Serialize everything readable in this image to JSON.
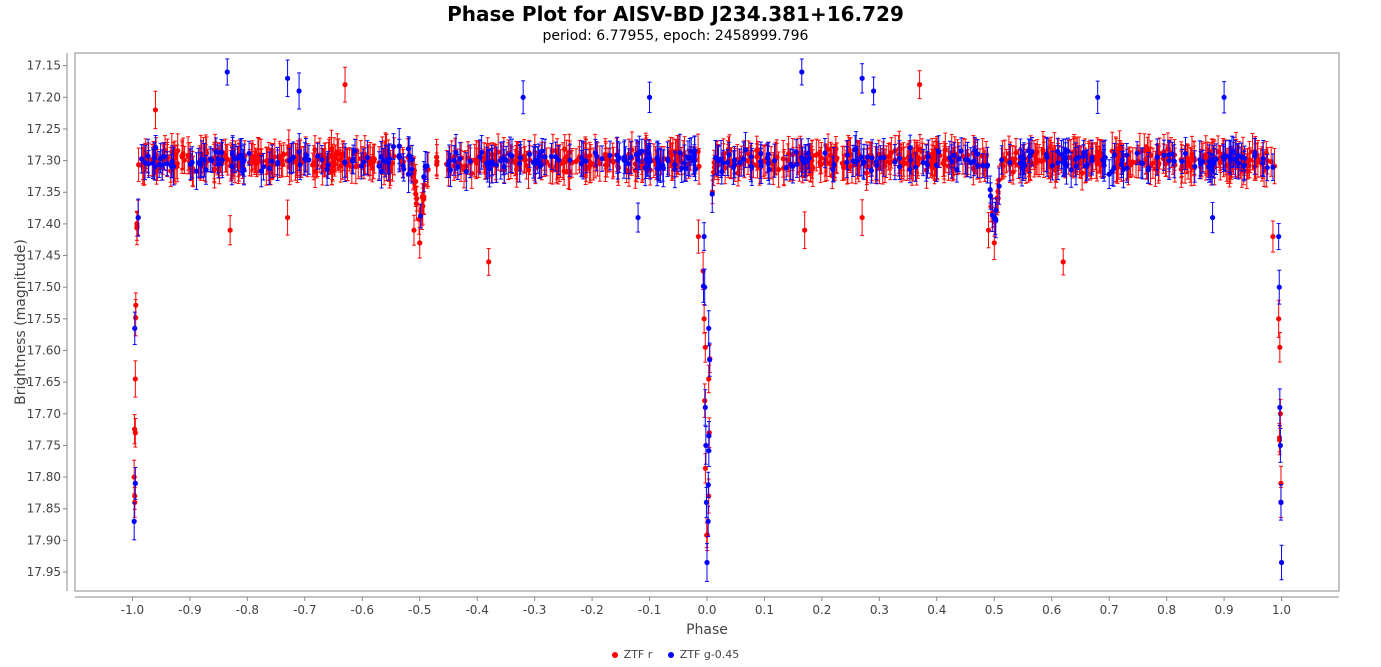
{
  "chart_data": {
    "type": "scatter",
    "title": "Phase Plot for AISV-BD J234.381+16.729",
    "subtitle": "period: 6.77955, epoch: 2458999.796",
    "xlabel": "Phase",
    "ylabel": "Brightness (magnitude)",
    "xlim": [
      -1.1,
      1.1
    ],
    "ylim": [
      17.13,
      17.98
    ],
    "y_inverted": true,
    "x_ticks": [
      "-1.0",
      "-0.9",
      "-0.8",
      "-0.7",
      "-0.6",
      "-0.5",
      "-0.4",
      "-0.3",
      "-0.2",
      "-0.1",
      "0.0",
      "0.1",
      "0.2",
      "0.3",
      "0.4",
      "0.5",
      "0.6",
      "0.7",
      "0.8",
      "0.9",
      "1.0"
    ],
    "y_ticks": [
      "17.15",
      "17.20",
      "17.25",
      "17.30",
      "17.35",
      "17.40",
      "17.45",
      "17.50",
      "17.55",
      "17.60",
      "17.65",
      "17.70",
      "17.75",
      "17.80",
      "17.85",
      "17.90",
      "17.95"
    ],
    "grid": false,
    "legend_position": "bottom",
    "series": [
      {
        "name": "ZTF r",
        "color": "#ff0000",
        "baseline_magnitude": 17.3,
        "points": [
          {
            "x": -0.995,
            "y": 17.645
          },
          {
            "x": -0.995,
            "y": 17.73
          },
          {
            "x": -0.997,
            "y": 17.8
          },
          {
            "x": -0.996,
            "y": 17.83
          },
          {
            "x": -0.996,
            "y": 17.84
          },
          {
            "x": -0.99,
            "y": 17.39
          },
          {
            "x": -0.96,
            "y": 17.22
          },
          {
            "x": -0.83,
            "y": 17.41
          },
          {
            "x": -0.73,
            "y": 17.39
          },
          {
            "x": -0.63,
            "y": 17.18
          },
          {
            "x": -0.51,
            "y": 17.41
          },
          {
            "x": -0.5,
            "y": 17.43
          },
          {
            "x": -0.38,
            "y": 17.46
          },
          {
            "x": -0.015,
            "y": 17.42
          },
          {
            "x": -0.005,
            "y": 17.55
          },
          {
            "x": -0.003,
            "y": 17.595
          },
          {
            "x": 0.003,
            "y": 17.645
          },
          {
            "x": 0.004,
            "y": 17.73
          },
          {
            "x": 0.003,
            "y": 17.83
          },
          {
            "x": 0.17,
            "y": 17.41
          },
          {
            "x": 0.27,
            "y": 17.39
          },
          {
            "x": 0.37,
            "y": 17.18
          },
          {
            "x": 0.49,
            "y": 17.41
          },
          {
            "x": 0.5,
            "y": 17.43
          },
          {
            "x": 0.62,
            "y": 17.46
          },
          {
            "x": 0.985,
            "y": 17.42
          },
          {
            "x": 0.995,
            "y": 17.55
          },
          {
            "x": 0.997,
            "y": 17.595
          },
          {
            "x": 0.998,
            "y": 17.7
          },
          {
            "x": 0.999,
            "y": 17.81
          },
          {
            "x": 0.999,
            "y": 17.84
          }
        ]
      },
      {
        "name": "ZTF g-0.45",
        "color": "#0000ff",
        "baseline_magnitude": 17.3,
        "points": [
          {
            "x": -0.996,
            "y": 17.565
          },
          {
            "x": -0.997,
            "y": 17.87
          },
          {
            "x": -0.995,
            "y": 17.81
          },
          {
            "x": -0.99,
            "y": 17.39
          },
          {
            "x": -0.835,
            "y": 17.16
          },
          {
            "x": -0.73,
            "y": 17.17
          },
          {
            "x": -0.71,
            "y": 17.19
          },
          {
            "x": -0.32,
            "y": 17.2
          },
          {
            "x": -0.1,
            "y": 17.2
          },
          {
            "x": -0.12,
            "y": 17.39
          },
          {
            "x": -0.005,
            "y": 17.42
          },
          {
            "x": -0.004,
            "y": 17.5
          },
          {
            "x": -0.003,
            "y": 17.69
          },
          {
            "x": -0.002,
            "y": 17.75
          },
          {
            "x": -0.001,
            "y": 17.84
          },
          {
            "x": 0.0,
            "y": 17.935
          },
          {
            "x": 0.003,
            "y": 17.565
          },
          {
            "x": 0.002,
            "y": 17.87
          },
          {
            "x": 0.165,
            "y": 17.16
          },
          {
            "x": 0.27,
            "y": 17.17
          },
          {
            "x": 0.29,
            "y": 17.19
          },
          {
            "x": 0.68,
            "y": 17.2
          },
          {
            "x": 0.88,
            "y": 17.39
          },
          {
            "x": 0.995,
            "y": 17.42
          },
          {
            "x": 0.996,
            "y": 17.5
          },
          {
            "x": 0.997,
            "y": 17.69
          },
          {
            "x": 0.998,
            "y": 17.75
          },
          {
            "x": 0.999,
            "y": 17.84
          },
          {
            "x": 1.0,
            "y": 17.935
          },
          {
            "x": 0.9,
            "y": 17.2
          }
        ]
      }
    ]
  }
}
